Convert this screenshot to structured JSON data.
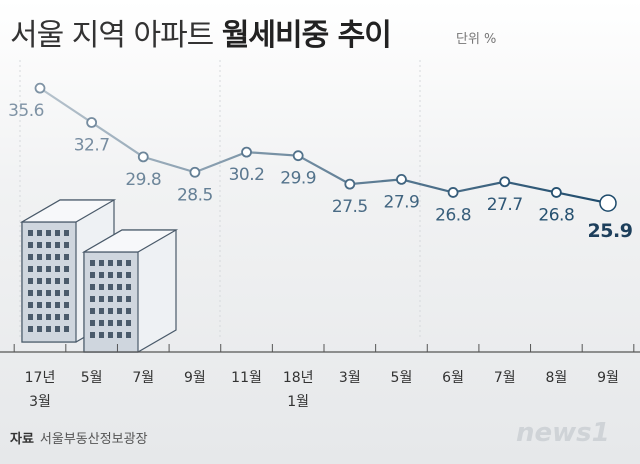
{
  "chart_data": {
    "type": "line",
    "title": "서울 지역 아파트",
    "title_bold": "월세비중 추이",
    "unit": "단위 %",
    "source_label": "자료",
    "source": "서울부동산정보광장",
    "logo": "news1",
    "categories": [
      "17년\n3월",
      "5월",
      "7월",
      "9월",
      "11월",
      "18년\n1월",
      "3월",
      "5월",
      "6월",
      "7월",
      "8월",
      "9월"
    ],
    "series": [
      {
        "name": "월세비중",
        "color": "#1d4a6b",
        "values": [
          35.6,
          32.7,
          29.8,
          28.5,
          30.2,
          29.9,
          27.5,
          27.9,
          26.8,
          27.7,
          26.8,
          25.9
        ]
      }
    ],
    "ylim": [
      20,
      40
    ]
  }
}
